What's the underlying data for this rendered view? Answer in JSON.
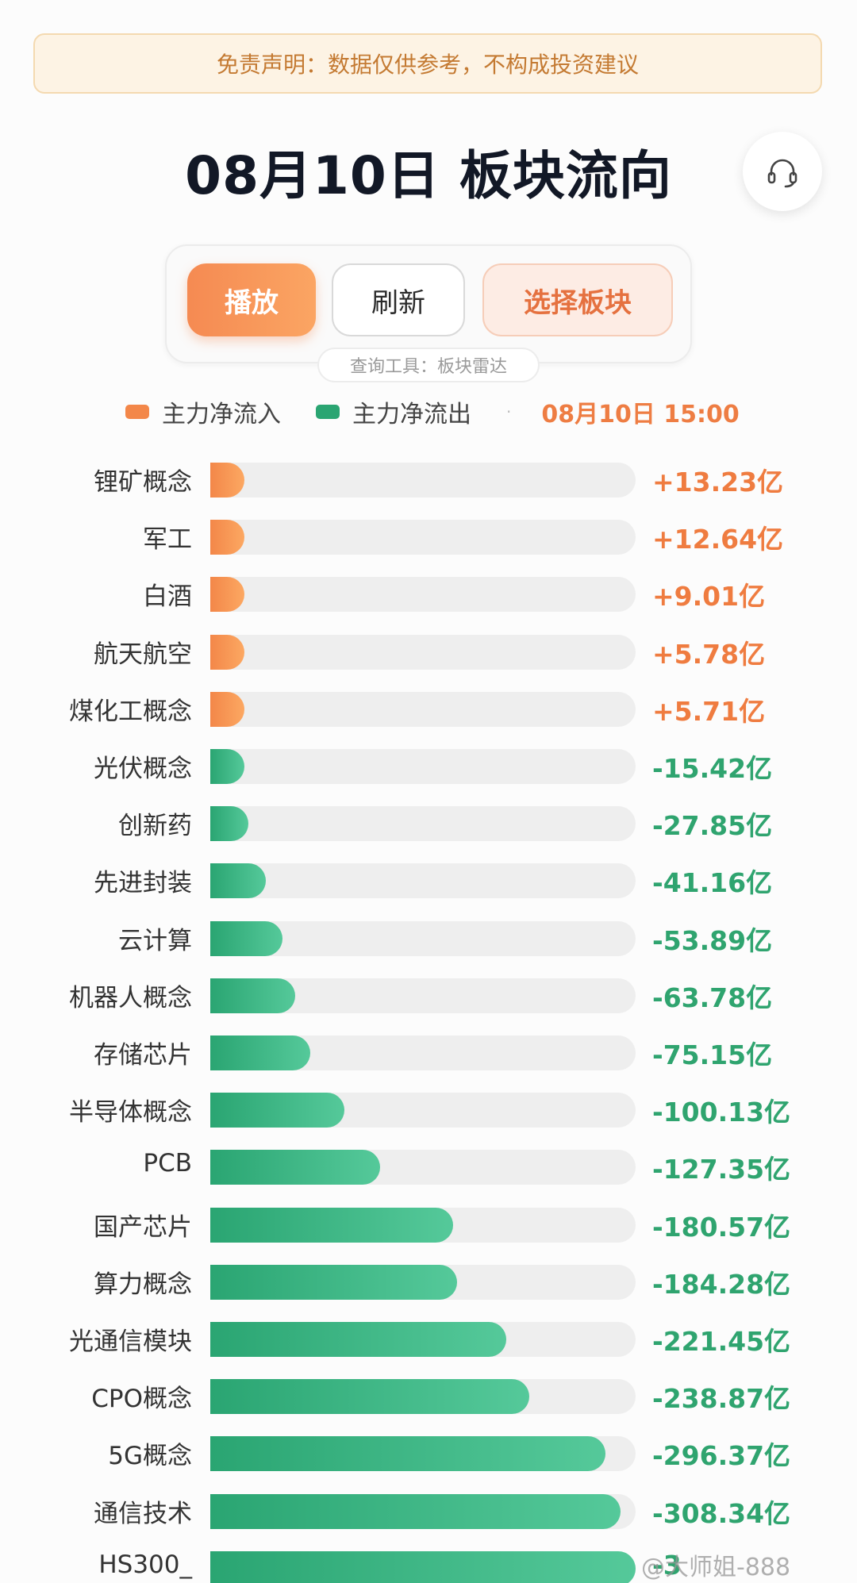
{
  "disclaimer": "免责声明：数据仅供参考，不构成投资建议",
  "title": "08月10日 板块流向",
  "icons": {
    "help": "headset-icon"
  },
  "controls": {
    "play_label": "播放",
    "refresh_label": "刷新",
    "select_label": "选择板块",
    "tool_tag": "查询工具：板块雷达"
  },
  "legend": {
    "inflow_label": "主力净流入",
    "outflow_label": "主力净流出",
    "timestamp": "08月10日 15:00"
  },
  "colors": {
    "inflow": "#f38749",
    "outflow": "#2aa572",
    "track": "#eeeeee"
  },
  "watermark": "@大师姐-888",
  "chart_data": {
    "type": "bar",
    "orientation": "horizontal",
    "title": "08月10日 板块流向",
    "unit": "亿",
    "categories": [
      "锂矿概念",
      "军工",
      "白酒",
      "航天航空",
      "煤化工概念",
      "光伏概念",
      "创新药",
      "先进封装",
      "云计算",
      "机器人概念",
      "存储芯片",
      "半导体概念",
      "PCB",
      "国产芯片",
      "算力概念",
      "光通信模块",
      "CPO概念",
      "5G概念",
      "通信技术",
      "HS300_"
    ],
    "values": [
      13.23,
      12.64,
      9.01,
      5.78,
      5.71,
      -15.42,
      -27.85,
      -41.16,
      -53.89,
      -63.78,
      -75.15,
      -100.13,
      -127.35,
      -180.57,
      -184.28,
      -221.45,
      -238.87,
      -296.37,
      -308.34,
      null
    ],
    "value_labels": [
      "+13.23亿",
      "+12.64亿",
      "+9.01亿",
      "+5.78亿",
      "+5.71亿",
      "-15.42亿",
      "-27.85亿",
      "-41.16亿",
      "-53.89亿",
      "-63.78亿",
      "-75.15亿",
      "-100.13亿",
      "-127.35亿",
      "-180.57亿",
      "-184.28亿",
      "-221.45亿",
      "-238.87亿",
      "-296.37亿",
      "-308.34亿",
      "-3"
    ],
    "bar_fill_fraction": [
      0.08,
      0.08,
      0.08,
      0.08,
      0.08,
      0.08,
      0.09,
      0.13,
      0.17,
      0.2,
      0.235,
      0.315,
      0.4,
      0.57,
      0.58,
      0.695,
      0.75,
      0.93,
      0.965,
      1.0
    ],
    "series": [
      {
        "name": "主力净流入"
      },
      {
        "name": "主力净流出"
      }
    ],
    "legend_position": "top",
    "grid": false
  }
}
